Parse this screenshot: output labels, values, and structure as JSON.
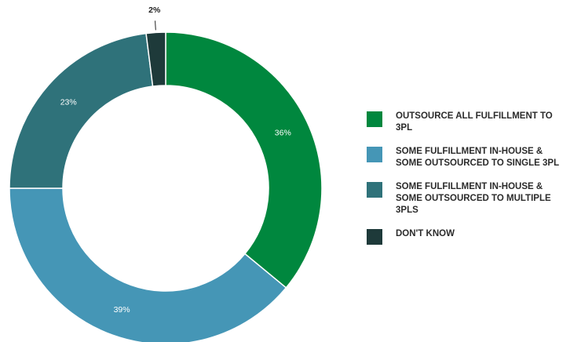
{
  "chart_data": {
    "type": "pie",
    "donut": true,
    "categories": [
      "OUTSOURCE ALL FULFILLMENT TO 3PL",
      "SOME FULFILLMENT IN-HOUSE & SOME OUTSOURCED TO SINGLE 3PL",
      "SOME FULFILLMENT IN-HOUSE & SOME OUTSOURCED TO MULTIPLE 3PLS",
      "DON'T KNOW"
    ],
    "values": [
      36,
      39,
      23,
      2
    ],
    "value_labels": [
      "36%",
      "39%",
      "23%",
      "2%"
    ],
    "colors": [
      "#00873e",
      "#4596b6",
      "#2f727a",
      "#1e3a3a"
    ],
    "legend_position": "right"
  }
}
